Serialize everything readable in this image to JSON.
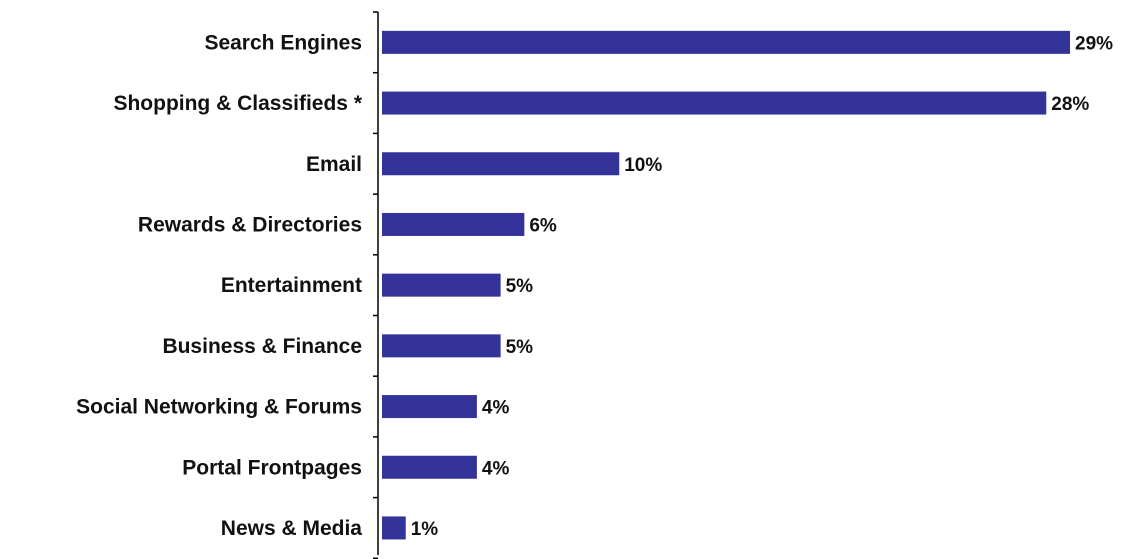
{
  "chart_data": {
    "type": "bar",
    "orientation": "horizontal",
    "categories": [
      "Search Engines",
      "Shopping & Classifieds *",
      "Email",
      "Rewards & Directories",
      "Entertainment",
      "Business & Finance",
      "Social Networking & Forums",
      "Portal Frontpages",
      "News & Media"
    ],
    "values": [
      29,
      28,
      10,
      6,
      5,
      5,
      4,
      4,
      1
    ],
    "data_labels": [
      "29%",
      "28%",
      "10%",
      "6%",
      "5%",
      "5%",
      "4%",
      "4%",
      "1%"
    ],
    "unit": "%",
    "xlim": [
      0,
      29
    ],
    "grid": false,
    "legend": "none",
    "bar_color": "#333399"
  }
}
